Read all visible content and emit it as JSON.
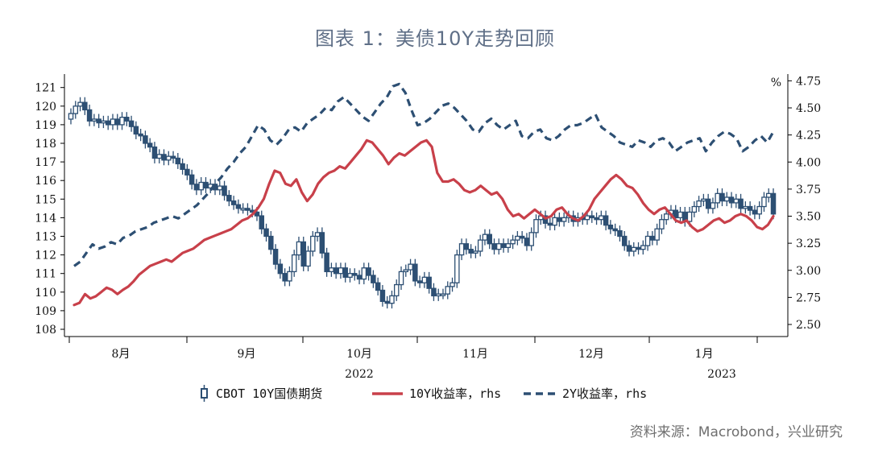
{
  "title": "图表 1：美债10Y走势回顾",
  "source": "资料来源：Macrobond，兴业研究",
  "chart_data": {
    "type": "line",
    "left_axis": {
      "min": 108,
      "max": 121,
      "ticks": [
        108,
        109,
        110,
        111,
        112,
        113,
        114,
        115,
        116,
        117,
        118,
        119,
        120,
        121
      ]
    },
    "right_axis": {
      "min": 2.5,
      "max": 4.75,
      "unit": "%",
      "ticks": [
        "2.50",
        "2.75",
        "3.00",
        "3.25",
        "3.50",
        "3.75",
        "4.00",
        "4.25",
        "4.50",
        "4.75"
      ]
    },
    "x_months": [
      "8月",
      "9月",
      "10月",
      "11月",
      "12月",
      "1月"
    ],
    "x_years": [
      "2022",
      "2023"
    ],
    "legend": [
      "CBOT 10Y国债期货",
      "10Y收益率，rhs",
      "2Y收益率，rhs"
    ],
    "colors": {
      "futures": "#2d4f73",
      "y10": "#c8404a",
      "y2": "#2d4f73"
    },
    "futures_close": [
      119.6,
      120.0,
      120.2,
      119.8,
      119.2,
      119.3,
      119.1,
      119.2,
      119.0,
      119.3,
      119.0,
      119.4,
      119.2,
      118.9,
      118.5,
      118.4,
      118.0,
      117.8,
      117.2,
      117.4,
      117.1,
      117.3,
      117.2,
      116.9,
      116.6,
      116.3,
      115.8,
      115.5,
      115.9,
      115.6,
      115.8,
      115.5,
      115.7,
      115.2,
      114.9,
      114.7,
      114.5,
      114.5,
      114.4,
      114.3,
      114.1,
      113.4,
      113.0,
      112.3,
      111.5,
      111.0,
      110.6,
      111.1,
      112.0,
      112.7,
      111.4,
      112.2,
      113.0,
      113.2,
      112.1,
      111.1,
      111.3,
      111.0,
      111.3,
      110.8,
      111.0,
      110.9,
      110.7,
      111.3,
      110.9,
      110.5,
      110.1,
      109.5,
      109.4,
      109.8,
      110.4,
      111.1,
      111.2,
      111.5,
      110.6,
      110.5,
      110.8,
      110.2,
      109.8,
      109.9,
      109.9,
      110.3,
      110.5,
      112.0,
      112.6,
      112.3,
      112.1,
      112.2,
      112.8,
      113.1,
      112.6,
      112.3,
      112.6,
      112.4,
      112.6,
      112.8,
      113.0,
      112.9,
      112.5,
      113.2,
      113.9,
      114.1,
      113.7,
      113.6,
      114.0,
      113.8,
      114.0,
      114.1,
      113.8,
      114.0,
      113.9,
      114.1,
      114.0,
      113.9,
      114.1,
      113.6,
      113.4,
      113.3,
      113.0,
      112.5,
      112.2,
      112.4,
      112.3,
      112.5,
      113.0,
      112.8,
      113.4,
      113.9,
      114.2,
      114.4,
      114.0,
      114.3,
      113.8,
      114.3,
      114.6,
      114.9,
      115.0,
      114.5,
      114.8,
      115.3,
      114.9,
      115.1,
      114.8,
      115.0,
      114.5,
      114.6,
      114.4,
      114.2,
      114.6,
      115.1,
      115.3,
      114.2
    ],
    "y10_yield": [
      2.68,
      2.7,
      2.78,
      2.74,
      2.76,
      2.8,
      2.84,
      2.82,
      2.78,
      2.82,
      2.85,
      2.9,
      2.96,
      3.0,
      3.04,
      3.06,
      3.08,
      3.1,
      3.08,
      3.12,
      3.16,
      3.18,
      3.2,
      3.24,
      3.28,
      3.3,
      3.32,
      3.34,
      3.36,
      3.38,
      3.42,
      3.46,
      3.48,
      3.52,
      3.58,
      3.66,
      3.8,
      3.92,
      3.9,
      3.8,
      3.78,
      3.84,
      3.72,
      3.64,
      3.7,
      3.8,
      3.86,
      3.9,
      3.92,
      3.96,
      3.94,
      4.0,
      4.06,
      4.12,
      4.2,
      4.18,
      4.12,
      4.06,
      3.98,
      4.04,
      4.08,
      4.06,
      4.1,
      4.14,
      4.18,
      4.2,
      4.14,
      3.9,
      3.82,
      3.82,
      3.84,
      3.8,
      3.74,
      3.72,
      3.74,
      3.78,
      3.74,
      3.7,
      3.72,
      3.66,
      3.56,
      3.5,
      3.52,
      3.48,
      3.52,
      3.56,
      3.52,
      3.48,
      3.5,
      3.56,
      3.58,
      3.52,
      3.48,
      3.46,
      3.5,
      3.56,
      3.66,
      3.72,
      3.78,
      3.84,
      3.88,
      3.84,
      3.78,
      3.76,
      3.7,
      3.62,
      3.56,
      3.52,
      3.56,
      3.58,
      3.52,
      3.46,
      3.44,
      3.46,
      3.4,
      3.36,
      3.38,
      3.42,
      3.46,
      3.48,
      3.44,
      3.46,
      3.5,
      3.52,
      3.5,
      3.46,
      3.4,
      3.38,
      3.42,
      3.5
    ],
    "y2_yield": [
      3.04,
      3.08,
      3.16,
      3.24,
      3.2,
      3.22,
      3.26,
      3.24,
      3.3,
      3.32,
      3.36,
      3.38,
      3.4,
      3.44,
      3.46,
      3.48,
      3.5,
      3.48,
      3.52,
      3.56,
      3.6,
      3.66,
      3.72,
      3.8,
      3.86,
      3.94,
      4.0,
      4.08,
      4.14,
      4.24,
      4.34,
      4.3,
      4.2,
      4.16,
      4.22,
      4.3,
      4.32,
      4.28,
      4.36,
      4.4,
      4.44,
      4.5,
      4.48,
      4.56,
      4.6,
      4.54,
      4.48,
      4.42,
      4.38,
      4.46,
      4.54,
      4.6,
      4.7,
      4.72,
      4.64,
      4.48,
      4.34,
      4.36,
      4.4,
      4.46,
      4.52,
      4.54,
      4.5,
      4.44,
      4.38,
      4.3,
      4.28,
      4.36,
      4.4,
      4.34,
      4.3,
      4.34,
      4.38,
      4.24,
      4.22,
      4.28,
      4.3,
      4.22,
      4.2,
      4.24,
      4.3,
      4.34,
      4.34,
      4.36,
      4.4,
      4.44,
      4.32,
      4.28,
      4.24,
      4.18,
      4.16,
      4.14,
      4.2,
      4.18,
      4.14,
      4.2,
      4.22,
      4.18,
      4.1,
      4.14,
      4.18,
      4.2,
      4.22,
      4.1,
      4.18,
      4.24,
      4.28,
      4.26,
      4.22,
      4.1,
      4.14,
      4.2,
      4.24,
      4.18,
      4.28
    ],
    "x_range": [
      0,
      145
    ]
  }
}
